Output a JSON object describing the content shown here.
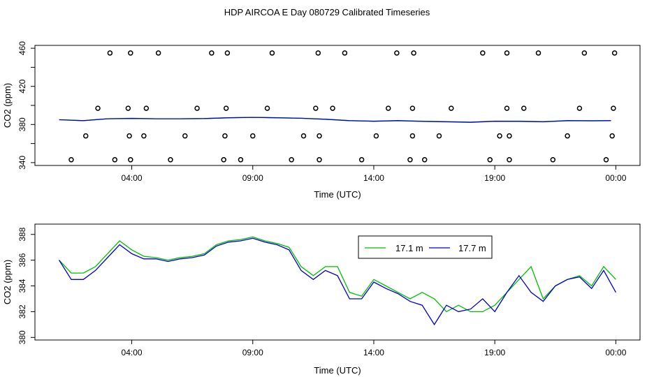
{
  "title": "HDP AIRCOA E  Day 080729  Calibrated Timeseries",
  "colors": {
    "green": "#00c000",
    "blue": "#0000d0",
    "axis": "#000000"
  },
  "chart_data": [
    {
      "type": "line",
      "panel": "top",
      "xlabel": "Time (UTC)",
      "ylabel": "CO2 (ppm)",
      "xlim": [
        0.0,
        25.0
      ],
      "ylim": [
        337,
        463
      ],
      "xticks": [
        {
          "v": 4,
          "label": "04:00"
        },
        {
          "v": 9,
          "label": "09:00"
        },
        {
          "v": 14,
          "label": "14:00"
        },
        {
          "v": 19,
          "label": "19:00"
        },
        {
          "v": 24,
          "label": "00:00"
        }
      ],
      "yticks": [
        340,
        360,
        380,
        400,
        420,
        440,
        460
      ],
      "yticklabels": [
        "340",
        "",
        "380",
        "",
        "420",
        "",
        "460"
      ],
      "scatter_markers": {
        "description": "calibration standards",
        "x": [
          1.5,
          2.1,
          2.6,
          3.1,
          3.3,
          3.9,
          3.85,
          3.95,
          3.95,
          4.5,
          4.6,
          5.1,
          5.6,
          6.2,
          6.7,
          7.3,
          7.8,
          7.85,
          7.9,
          7.95,
          8.5,
          9.0,
          9.6,
          9.8,
          10.6,
          11.1,
          11.6,
          11.7,
          11.75,
          11.75,
          12.3,
          12.8,
          13.5,
          14.1,
          14.6,
          14.95,
          15.5,
          15.6,
          15.6,
          15.65,
          16.1,
          16.7,
          17.2,
          18.5,
          18.8,
          19.2,
          19.5,
          19.5,
          19.6,
          19.6,
          20.2,
          20.8,
          21.4,
          22.0,
          22.5,
          22.7,
          23.6,
          23.85,
          23.9,
          23.95
        ]
      },
      "series": [
        {
          "name": "17.1 m",
          "color": "green",
          "x": [
            1.0,
            2.0,
            3.0,
            4.0,
            5.0,
            6.0,
            7.0,
            8.0,
            9.0,
            10.0,
            11.0,
            12.0,
            13.0,
            14.0,
            15.0,
            16.0,
            17.0,
            18.0,
            19.0,
            20.0,
            21.0,
            22.0,
            23.0,
            23.8
          ],
          "y": [
            385,
            384,
            386,
            386.5,
            386,
            386,
            386.2,
            387,
            387.5,
            387,
            386.5,
            385.5,
            384,
            383.5,
            384,
            383.5,
            383,
            382.5,
            383.5,
            383.5,
            383,
            384,
            384,
            384
          ]
        },
        {
          "name": "17.7 m",
          "color": "blue",
          "x": [
            1.0,
            2.0,
            3.0,
            4.0,
            5.0,
            6.0,
            7.0,
            8.0,
            9.0,
            10.0,
            11.0,
            12.0,
            13.0,
            14.0,
            15.0,
            16.0,
            17.0,
            18.0,
            19.0,
            20.0,
            21.0,
            22.0,
            23.0,
            23.8
          ],
          "y": [
            385,
            384,
            386,
            386.3,
            386,
            386,
            386.2,
            387,
            387.5,
            387,
            386.5,
            385.5,
            384,
            383.4,
            384,
            383.2,
            382.8,
            382.3,
            383.4,
            383.3,
            382.8,
            384,
            383.8,
            384
          ]
        }
      ]
    },
    {
      "type": "line",
      "panel": "bottom",
      "xlabel": "Time (UTC)",
      "ylabel": "CO2 (ppm)",
      "xlim": [
        0.0,
        25.0
      ],
      "ylim": [
        379.8,
        388.8
      ],
      "xticks": [
        {
          "v": 4,
          "label": "04:00"
        },
        {
          "v": 9,
          "label": "09:00"
        },
        {
          "v": 14,
          "label": "14:00"
        },
        {
          "v": 19,
          "label": "19:00"
        },
        {
          "v": 24,
          "label": "00:00"
        }
      ],
      "yticks": [
        380,
        382,
        384,
        386,
        388
      ],
      "yticklabels": [
        "380",
        "382",
        "384",
        "386",
        "388"
      ],
      "legend": {
        "position": "top-center",
        "entries": [
          "17.1 m",
          "17.7 m"
        ]
      },
      "series": [
        {
          "name": "17.1 m",
          "color": "green",
          "x": [
            1.0,
            1.5,
            2.0,
            2.5,
            3.0,
            3.5,
            4.0,
            4.5,
            5.0,
            5.5,
            6.0,
            6.5,
            7.0,
            7.5,
            8.0,
            8.5,
            9.0,
            9.5,
            10.0,
            10.5,
            11.0,
            11.5,
            12.0,
            12.5,
            13.0,
            13.5,
            14.0,
            14.5,
            15.0,
            15.5,
            16.0,
            16.5,
            17.0,
            17.5,
            18.0,
            18.5,
            19.0,
            19.5,
            20.0,
            20.5,
            21.0,
            21.5,
            22.0,
            22.5,
            23.0,
            23.5,
            24.0
          ],
          "y": [
            386,
            385,
            385,
            385.5,
            386.5,
            387.5,
            386.8,
            386.3,
            386.2,
            386,
            386.2,
            386.3,
            386.5,
            387.2,
            387.5,
            387.6,
            387.8,
            387.5,
            387.3,
            387,
            385.5,
            384.8,
            385.5,
            385.5,
            383.5,
            383.2,
            384.5,
            384,
            383.5,
            383,
            383.5,
            383,
            382,
            382.5,
            382,
            382,
            382.5,
            383.5,
            384.5,
            385.5,
            383,
            384,
            384.5,
            384.8,
            384,
            385.5,
            384.5
          ]
        },
        {
          "name": "17.7 m",
          "color": "blue",
          "x": [
            1.0,
            1.5,
            2.0,
            2.5,
            3.0,
            3.5,
            4.0,
            4.5,
            5.0,
            5.5,
            6.0,
            6.5,
            7.0,
            7.5,
            8.0,
            8.5,
            9.0,
            9.5,
            10.0,
            10.5,
            11.0,
            11.5,
            12.0,
            12.5,
            13.0,
            13.5,
            14.0,
            14.5,
            15.0,
            15.5,
            16.0,
            16.5,
            17.0,
            17.5,
            18.0,
            18.5,
            19.0,
            19.5,
            20.0,
            20.5,
            21.0,
            21.5,
            22.0,
            22.5,
            23.0,
            23.5,
            24.0
          ],
          "y": [
            386,
            384.5,
            384.5,
            385.2,
            386.2,
            387.2,
            386.5,
            386.1,
            386.1,
            385.9,
            386.1,
            386.2,
            386.4,
            387.1,
            387.4,
            387.5,
            387.7,
            387.4,
            387.2,
            386.8,
            385.2,
            384.5,
            385.2,
            384.8,
            383,
            383,
            384.3,
            383.8,
            383.4,
            382.8,
            382.5,
            381,
            382.5,
            382,
            382.2,
            383,
            382,
            383.5,
            384.8,
            383.5,
            382.8,
            384,
            384.5,
            384.7,
            383.8,
            385.2,
            383.5
          ]
        }
      ]
    }
  ]
}
